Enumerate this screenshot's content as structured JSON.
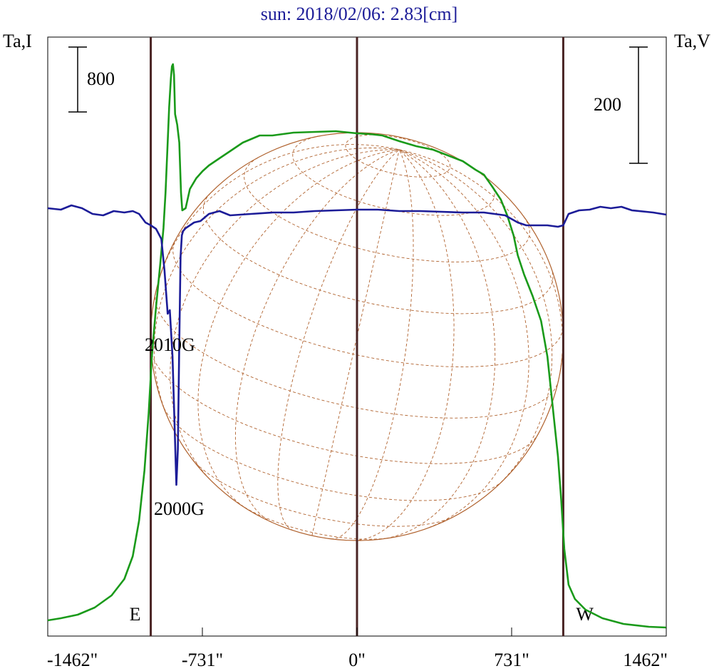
{
  "chart_data": {
    "type": "line",
    "title": "sun: 2018/02/06: 2.83[cm]",
    "left_axis_label": "Ta,I",
    "right_axis_label": "Ta,V",
    "x_ticks": [
      {
        "value": -1462,
        "label": "-1462\""
      },
      {
        "value": -731,
        "label": "-731\""
      },
      {
        "value": 0,
        "label": "0\""
      },
      {
        "value": 731,
        "label": "731\""
      },
      {
        "value": 1462,
        "label": "1462\""
      }
    ],
    "xlim": [
      -1462,
      1462
    ],
    "limb_markers": [
      {
        "x": -975,
        "label": "E"
      },
      {
        "x": 0,
        "label": ""
      },
      {
        "x": 975,
        "label": "W"
      }
    ],
    "scale_bars": [
      {
        "side": "left",
        "label": "800"
      },
      {
        "side": "right",
        "label": "200"
      }
    ],
    "annotations": [
      {
        "label": "2010G",
        "x": -845
      },
      {
        "label": "2000G",
        "x": -805
      }
    ],
    "solar_disk": {
      "center_x": 0,
      "radius_arcsec": 975,
      "grid": "heliographic dashed",
      "color": "#b0622e"
    },
    "series": [
      {
        "name": "",
        "role": "I",
        "color": "#1a9a1a",
        "points": [
          [
            -1462,
            870
          ],
          [
            -1400,
            867
          ],
          [
            -1320,
            862
          ],
          [
            -1240,
            852
          ],
          [
            -1160,
            835
          ],
          [
            -1100,
            812
          ],
          [
            -1060,
            780
          ],
          [
            -1030,
            730
          ],
          [
            -1005,
            660
          ],
          [
            -985,
            580
          ],
          [
            -970,
            500
          ],
          [
            -950,
            430
          ],
          [
            -930,
            370
          ],
          [
            -915,
            320
          ],
          [
            -905,
            270
          ],
          [
            -895,
            200
          ],
          [
            -888,
            150
          ],
          [
            -880,
            110
          ],
          [
            -875,
            93
          ],
          [
            -870,
            90
          ],
          [
            -865,
            105
          ],
          [
            -860,
            160
          ],
          [
            -850,
            175
          ],
          [
            -840,
            200
          ],
          [
            -832,
            270
          ],
          [
            -826,
            295
          ],
          [
            -810,
            292
          ],
          [
            -790,
            265
          ],
          [
            -760,
            250
          ],
          [
            -730,
            240
          ],
          [
            -700,
            232
          ],
          [
            -650,
            222
          ],
          [
            -600,
            212
          ],
          [
            -540,
            200
          ],
          [
            -460,
            190
          ],
          [
            -400,
            190
          ],
          [
            -300,
            186
          ],
          [
            -200,
            185
          ],
          [
            -100,
            184
          ],
          [
            0,
            187
          ],
          [
            60,
            188
          ],
          [
            120,
            190
          ],
          [
            200,
            198
          ],
          [
            280,
            205
          ],
          [
            360,
            210
          ],
          [
            430,
            218
          ],
          [
            500,
            226
          ],
          [
            560,
            238
          ],
          [
            600,
            245
          ],
          [
            640,
            262
          ],
          [
            680,
            280
          ],
          [
            710,
            302
          ],
          [
            740,
            330
          ],
          [
            760,
            358
          ],
          [
            790,
            385
          ],
          [
            830,
            415
          ],
          [
            870,
            450
          ],
          [
            900,
            500
          ],
          [
            925,
            570
          ],
          [
            950,
            640
          ],
          [
            965,
            700
          ],
          [
            980,
            770
          ],
          [
            1000,
            820
          ],
          [
            1030,
            840
          ],
          [
            1080,
            855
          ],
          [
            1160,
            867
          ],
          [
            1260,
            875
          ],
          [
            1380,
            879
          ],
          [
            1462,
            880
          ]
        ]
      },
      {
        "name": "",
        "role": "V",
        "color": "#1c1c98",
        "points": [
          [
            -1462,
            292
          ],
          [
            -1400,
            294
          ],
          [
            -1350,
            288
          ],
          [
            -1300,
            292
          ],
          [
            -1250,
            300
          ],
          [
            -1200,
            302
          ],
          [
            -1150,
            296
          ],
          [
            -1100,
            298
          ],
          [
            -1060,
            296
          ],
          [
            -1030,
            300
          ],
          [
            -1000,
            312
          ],
          [
            -975,
            316
          ],
          [
            -950,
            321
          ],
          [
            -925,
            335
          ],
          [
            -910,
            380
          ],
          [
            -895,
            440
          ],
          [
            -885,
            435
          ],
          [
            -872,
            500
          ],
          [
            -866,
            560
          ],
          [
            -860,
            620
          ],
          [
            -854,
            680
          ],
          [
            -847,
            630
          ],
          [
            -840,
            480
          ],
          [
            -834,
            360
          ],
          [
            -828,
            330
          ],
          [
            -822,
            324
          ],
          [
            -810,
            320
          ],
          [
            -790,
            316
          ],
          [
            -770,
            312
          ],
          [
            -740,
            310
          ],
          [
            -700,
            300
          ],
          [
            -650,
            296
          ],
          [
            -600,
            302
          ],
          [
            -500,
            300
          ],
          [
            -400,
            298
          ],
          [
            -300,
            298
          ],
          [
            -200,
            296
          ],
          [
            -100,
            295
          ],
          [
            0,
            294
          ],
          [
            100,
            294
          ],
          [
            200,
            296
          ],
          [
            300,
            296
          ],
          [
            400,
            297
          ],
          [
            500,
            298
          ],
          [
            600,
            298
          ],
          [
            700,
            302
          ],
          [
            760,
            312
          ],
          [
            800,
            316
          ],
          [
            850,
            316
          ],
          [
            900,
            316
          ],
          [
            950,
            318
          ],
          [
            975,
            316
          ],
          [
            1000,
            300
          ],
          [
            1050,
            295
          ],
          [
            1100,
            294
          ],
          [
            1150,
            290
          ],
          [
            1200,
            292
          ],
          [
            1250,
            290
          ],
          [
            1300,
            295
          ],
          [
            1400,
            298
          ],
          [
            1462,
            301
          ]
        ]
      }
    ]
  }
}
